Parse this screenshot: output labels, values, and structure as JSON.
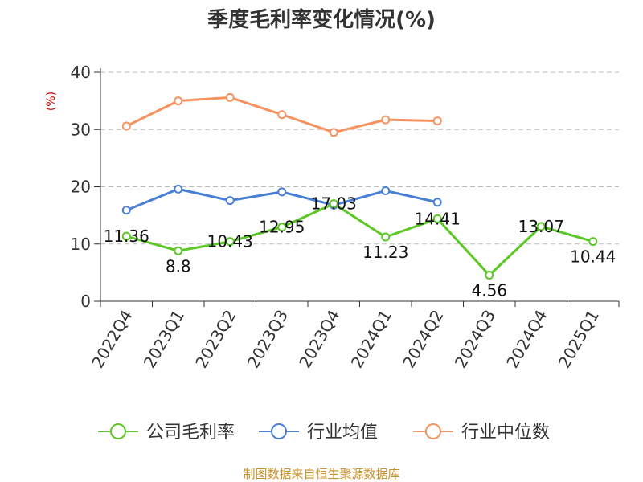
{
  "chart_data": {
    "type": "line",
    "title": "季度毛利率变化情况(%)",
    "ylabel": "(%)",
    "xlabel": "",
    "categories": [
      "2022Q4",
      "2023Q1",
      "2023Q2",
      "2023Q3",
      "2023Q4",
      "2024Q1",
      "2024Q2",
      "2024Q3",
      "2024Q4",
      "2025Q1"
    ],
    "ylim": [
      0,
      40
    ],
    "yticks": [
      0,
      10,
      20,
      30,
      40
    ],
    "grid": true,
    "legend_position": "bottom",
    "series": [
      {
        "name": "公司毛利率",
        "color": "#5ac725",
        "values": [
          11.36,
          8.8,
          10.43,
          12.95,
          17.03,
          11.23,
          14.41,
          4.56,
          13.07,
          10.44
        ],
        "labels": [
          "11.36",
          "8.8",
          "10.43",
          "12.95",
          "17.03",
          "11.23",
          "14.41",
          "4.56",
          "13.07",
          "10.44"
        ]
      },
      {
        "name": "行业均值",
        "color": "#4a7fd6",
        "values": [
          15.9,
          19.6,
          17.6,
          19.1,
          16.8,
          19.3,
          17.3,
          null,
          null,
          null
        ]
      },
      {
        "name": "行业中位数",
        "color": "#f5925e",
        "values": [
          30.6,
          35.0,
          35.6,
          32.6,
          29.5,
          31.7,
          31.5,
          null,
          null,
          null
        ]
      }
    ]
  },
  "footer": {
    "source": "制图数据来自恒生聚源数据库"
  }
}
